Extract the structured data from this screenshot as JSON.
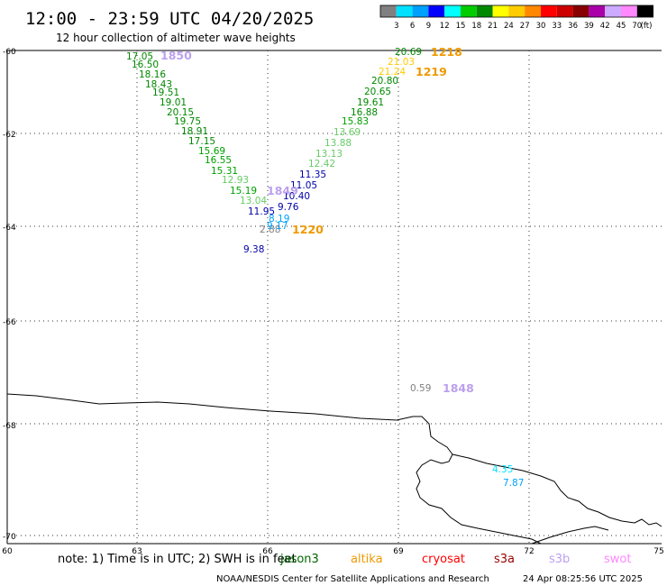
{
  "header": {
    "title": "12:00 - 23:59 UTC 04/20/2025",
    "subtitle": "12 hour collection of altimeter wave heights"
  },
  "legend": {
    "swatches": [
      "#808080",
      "#00e0ff",
      "#00a0ff",
      "#0000ff",
      "#00ffff",
      "#00cc00",
      "#008800",
      "#ffff00",
      "#ffcc00",
      "#ff8800",
      "#ff0000",
      "#cc0000",
      "#880000",
      "#aa00aa",
      "#ccaaff",
      "#ff88ff",
      "#000000"
    ],
    "labels": [
      "3",
      "6",
      "9",
      "12",
      "15",
      "18",
      "21",
      "24",
      "27",
      "30",
      "33",
      "36",
      "39",
      "42",
      "45",
      "70"
    ],
    "unit": "(ft)"
  },
  "axes": {
    "lat_labels": [
      "-60",
      "-62",
      "-64",
      "-66",
      "-68",
      "-70"
    ],
    "lon_labels": [
      "60",
      "63",
      "66",
      "69",
      "72",
      "75"
    ]
  },
  "observations": [
    {
      "text": "17.05",
      "color": "#008800"
    },
    {
      "text": "16.50",
      "color": "#008800"
    },
    {
      "text": "18.16",
      "color": "#008800"
    },
    {
      "text": "18.43",
      "color": "#008800"
    },
    {
      "text": "19.51",
      "color": "#008800"
    },
    {
      "text": "19.01",
      "color": "#008800"
    },
    {
      "text": "20.15",
      "color": "#008800"
    },
    {
      "text": "19.75",
      "color": "#008800"
    },
    {
      "text": "18.91",
      "color": "#008800"
    },
    {
      "text": "17.15",
      "color": "#008800"
    },
    {
      "text": "15.69",
      "color": "#00a000"
    },
    {
      "text": "16.55",
      "color": "#00a000"
    },
    {
      "text": "15.31",
      "color": "#00a000"
    },
    {
      "text": "12.93",
      "color": "#66cc66"
    },
    {
      "text": "15.19",
      "color": "#00a000"
    },
    {
      "text": "13.04",
      "color": "#66cc66"
    },
    {
      "text": "11.95",
      "color": "#0000aa"
    },
    {
      "text": "8.19",
      "color": "#00a0ff"
    },
    {
      "text": "2.88",
      "color": "#808080"
    },
    {
      "text": "9.17",
      "color": "#00a0ff"
    },
    {
      "text": "9.38",
      "color": "#0000aa"
    },
    {
      "text": "9.76",
      "color": "#0000aa"
    },
    {
      "text": "10.40",
      "color": "#0000aa"
    },
    {
      "text": "11.05",
      "color": "#0000aa"
    },
    {
      "text": "11.35",
      "color": "#0000aa"
    },
    {
      "text": "12.42",
      "color": "#66cc66"
    },
    {
      "text": "13.13",
      "color": "#66cc66"
    },
    {
      "text": "13.88",
      "color": "#66cc66"
    },
    {
      "text": "13.69",
      "color": "#66cc66"
    },
    {
      "text": "15.83",
      "color": "#00a000"
    },
    {
      "text": "16.88",
      "color": "#008800"
    },
    {
      "text": "19.61",
      "color": "#008800"
    },
    {
      "text": "20.65",
      "color": "#008800"
    },
    {
      "text": "20.80",
      "color": "#008800"
    },
    {
      "text": "21.24",
      "color": "#ffcc00"
    },
    {
      "text": "21.03",
      "color": "#ffcc00"
    },
    {
      "text": "20.69",
      "color": "#008800"
    },
    {
      "text": "0.59",
      "color": "#808080"
    },
    {
      "text": "4.35",
      "color": "#00e0ff"
    },
    {
      "text": "7.87",
      "color": "#00a0ff"
    }
  ],
  "pass_times": [
    {
      "text": "1850",
      "color": "#bba0ee"
    },
    {
      "text": "1218",
      "color": "#ee9900"
    },
    {
      "text": "1219",
      "color": "#ee9900"
    },
    {
      "text": "1849",
      "color": "#bba0ee"
    },
    {
      "text": "1220",
      "color": "#ee9900"
    },
    {
      "text": "1848",
      "color": "#bba0ee"
    }
  ],
  "footer": {
    "note": "note: 1) Time is in UTC; 2) SWH is in feet",
    "satellites": [
      {
        "text": "jason3",
        "color": "#006600"
      },
      {
        "text": "altika",
        "color": "#ee9900"
      },
      {
        "text": "cryosat",
        "color": "#ff0000"
      },
      {
        "text": "s3a",
        "color": "#990000"
      },
      {
        "text": "s3b",
        "color": "#bba0ee"
      },
      {
        "text": "swot",
        "color": "#ff88ff"
      }
    ],
    "credit": "NOAA/NESDIS Center for Satellite Applications and Research",
    "timestamp": "24 Apr 08:25:56 UTC 2025"
  }
}
